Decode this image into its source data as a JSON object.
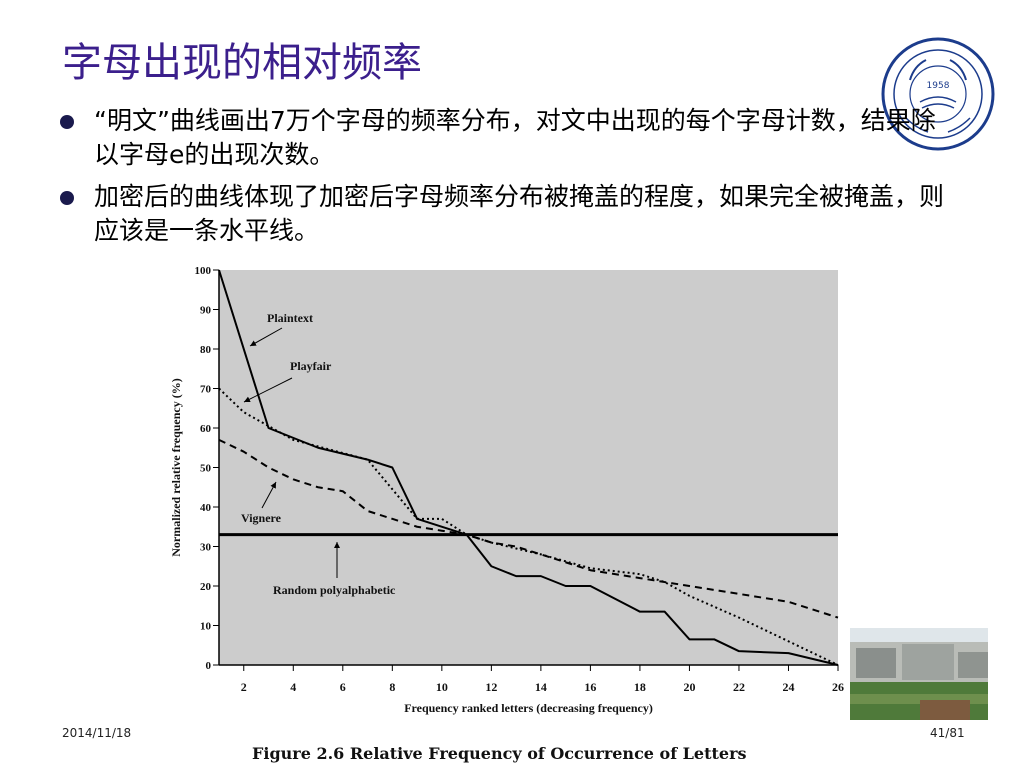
{
  "slide": {
    "title": "字母出现的相对频率",
    "bullets": [
      "“明文”曲线画出7万个字母的频率分布，对文中出现的每个字母计数，结果除以字母e的出现次数。",
      "加密后的曲线体现了加密后字母频率分布被掩盖的程度，如果完全被掩盖，则应该是一条水平线。"
    ],
    "logo": {
      "year": "1958",
      "text": "University of Science and Technology of China"
    },
    "footer_date": "2014/11/18",
    "page_number": "41/81",
    "figure_caption": "Figure 2.6   Relative Frequency of Occurrence of Letters"
  },
  "chart_data": {
    "type": "line",
    "xlabel": "Frequency ranked letters (decreasing frequency)",
    "ylabel": "Normalized relative frequency (%)",
    "xlim": [
      1,
      26
    ],
    "ylim": [
      0,
      100
    ],
    "xticks": [
      2,
      4,
      6,
      8,
      10,
      12,
      14,
      16,
      18,
      20,
      22,
      24,
      26
    ],
    "yticks": [
      0,
      10,
      20,
      30,
      40,
      50,
      60,
      70,
      80,
      90,
      100
    ],
    "background": "#cccccc",
    "series": [
      {
        "name": "Plaintext",
        "style": "solid",
        "x": [
          1,
          3,
          5,
          7,
          8,
          9,
          11,
          12,
          13,
          14,
          15,
          16,
          18,
          19,
          20,
          21,
          22,
          24,
          26
        ],
        "y": [
          100,
          60,
          55,
          52,
          50,
          37,
          33,
          25,
          22.5,
          22.5,
          20,
          20,
          13.5,
          13.5,
          6.5,
          6.5,
          3.5,
          3,
          0
        ]
      },
      {
        "name": "Playfair",
        "style": "dotted",
        "x": [
          1,
          2,
          4,
          7,
          9,
          10,
          11,
          12,
          13,
          14,
          16,
          18,
          19,
          20,
          22,
          26
        ],
        "y": [
          70,
          64,
          57,
          52,
          37,
          37,
          33,
          31,
          29.5,
          28,
          24.5,
          23,
          21,
          17.5,
          12,
          0
        ]
      },
      {
        "name": "Vignere",
        "style": "dashed",
        "x": [
          1,
          2,
          3,
          4,
          5,
          6,
          7,
          8,
          9,
          10,
          11,
          12,
          13,
          14,
          16,
          18,
          20,
          22,
          24,
          26
        ],
        "y": [
          57,
          54,
          50,
          47,
          45,
          44,
          39,
          37,
          35,
          34,
          33,
          31,
          30,
          28,
          24,
          22,
          20,
          18,
          16,
          12
        ]
      },
      {
        "name": "Random polyalphabetic",
        "style": "solid-thick",
        "x": [
          1,
          26
        ],
        "y": [
          33,
          33
        ]
      }
    ]
  }
}
